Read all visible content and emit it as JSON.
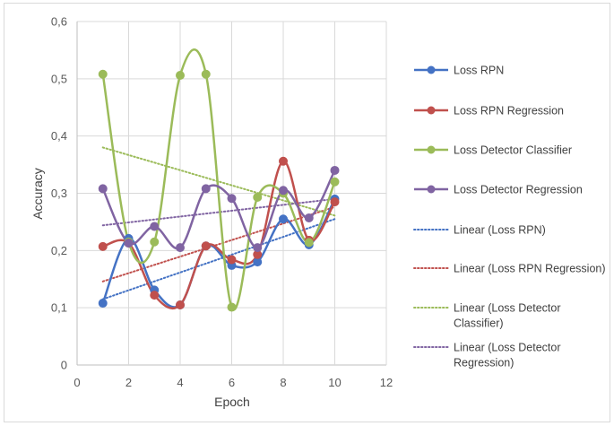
{
  "chart_data": {
    "type": "line",
    "title": "",
    "xlabel": "Epoch",
    "ylabel": "Accuracy",
    "xlim": [
      0,
      12
    ],
    "ylim": [
      0,
      0.6
    ],
    "x_ticks": [
      0,
      2,
      4,
      6,
      8,
      10,
      12
    ],
    "x_tick_labels": [
      "0",
      "2",
      "4",
      "6",
      "8",
      "10",
      "12"
    ],
    "y_ticks": [
      0,
      0.1,
      0.2,
      0.3,
      0.4,
      0.5,
      0.6
    ],
    "y_tick_labels": [
      "0",
      "0,1",
      "0,2",
      "0,3",
      "0,4",
      "0,5",
      "0,6"
    ],
    "grid": true,
    "legend_position": "right",
    "x": [
      1,
      2,
      3,
      4,
      5,
      6,
      7,
      8,
      9,
      10
    ],
    "series": [
      {
        "name": "Loss RPN",
        "color": "#4472c4",
        "style": "smooth-marker",
        "values": [
          0.108,
          0.221,
          0.131,
          0.105,
          0.208,
          0.174,
          0.18,
          0.255,
          0.21,
          0.29
        ]
      },
      {
        "name": "Loss RPN Regression",
        "color": "#c0504d",
        "style": "smooth-marker",
        "values": [
          0.207,
          0.213,
          0.122,
          0.105,
          0.208,
          0.184,
          0.193,
          0.356,
          0.218,
          0.285
        ]
      },
      {
        "name": "Loss Detector Classifier",
        "color": "#9bbb59",
        "style": "smooth-marker",
        "values": [
          0.508,
          0.215,
          0.215,
          0.506,
          0.508,
          0.101,
          0.293,
          0.3,
          0.214,
          0.32
        ]
      },
      {
        "name": "Loss Detector Regression",
        "color": "#8064a2",
        "style": "smooth-marker",
        "values": [
          0.308,
          0.213,
          0.242,
          0.205,
          0.308,
          0.291,
          0.205,
          0.305,
          0.257,
          0.34
        ]
      }
    ],
    "trendlines": [
      {
        "name": "Linear (Loss RPN)",
        "color": "#4472c4",
        "x": [
          1,
          10
        ],
        "values": [
          0.115,
          0.255
        ]
      },
      {
        "name": "Linear (Loss RPN Regression)",
        "color": "#c0504d",
        "x": [
          1,
          10
        ],
        "values": [
          0.146,
          0.276
        ]
      },
      {
        "name": "Linear (Loss Detector Classifier)",
        "color": "#9bbb59",
        "x": [
          1,
          10
        ],
        "values": [
          0.38,
          0.261
        ]
      },
      {
        "name": "Linear (Loss Detector Regression)",
        "color": "#8064a2",
        "x": [
          1,
          10
        ],
        "values": [
          0.244,
          0.29
        ]
      }
    ],
    "legend": [
      {
        "label": [
          "Loss RPN"
        ],
        "color": "#4472c4",
        "kind": "marker"
      },
      {
        "label": [
          "Loss RPN Regression"
        ],
        "color": "#c0504d",
        "kind": "marker"
      },
      {
        "label": [
          "Loss Detector Classifier"
        ],
        "color": "#9bbb59",
        "kind": "marker"
      },
      {
        "label": [
          "Loss Detector Regression"
        ],
        "color": "#8064a2",
        "kind": "marker"
      },
      {
        "label": [
          "Linear (Loss RPN)"
        ],
        "color": "#4472c4",
        "kind": "dotted"
      },
      {
        "label": [
          "Linear (Loss RPN Regression)"
        ],
        "color": "#c0504d",
        "kind": "dotted"
      },
      {
        "label": [
          "Linear (Loss Detector",
          "Classifier)"
        ],
        "color": "#9bbb59",
        "kind": "dotted"
      },
      {
        "label": [
          "Linear (Loss Detector",
          "Regression)"
        ],
        "color": "#8064a2",
        "kind": "dotted"
      }
    ]
  }
}
